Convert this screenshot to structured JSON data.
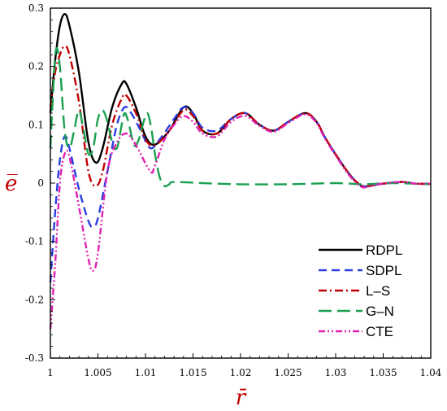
{
  "chart_data": {
    "type": "line",
    "xlabel": "r̄",
    "ylabel": "e̅",
    "xlim": [
      1.0,
      1.04
    ],
    "ylim": [
      -0.3,
      0.3
    ],
    "x_ticks": [
      1.0,
      1.005,
      1.01,
      1.015,
      1.02,
      1.025,
      1.03,
      1.035,
      1.04
    ],
    "x_tick_labels": [
      "1",
      "1.005",
      "1.01",
      "1.015",
      "1.02",
      "1.025",
      "1.03",
      "1.035",
      "1.04"
    ],
    "y_ticks": [
      -0.3,
      -0.2,
      -0.1,
      0.0,
      0.1,
      0.2,
      0.3
    ],
    "y_tick_labels": [
      "-0.3",
      "-0.2",
      "-0.1",
      "0",
      "0.1",
      "0.2",
      "0.3"
    ],
    "legend_position": "bottom-right",
    "grid": false,
    "series": [
      {
        "name": "RDPL",
        "color": "#000000",
        "dash": "solid",
        "points": [
          [
            1.0,
            0.12
          ],
          [
            1.0005,
            0.21
          ],
          [
            1.001,
            0.27
          ],
          [
            1.0015,
            0.29
          ],
          [
            1.002,
            0.27
          ],
          [
            1.003,
            0.19
          ],
          [
            1.004,
            0.07
          ],
          [
            1.0048,
            0.035
          ],
          [
            1.0055,
            0.06
          ],
          [
            1.0065,
            0.13
          ],
          [
            1.0075,
            0.17
          ],
          [
            1.008,
            0.17
          ],
          [
            1.009,
            0.13
          ],
          [
            1.01,
            0.08
          ],
          [
            1.011,
            0.066
          ],
          [
            1.0125,
            0.09
          ],
          [
            1.014,
            0.13
          ],
          [
            1.015,
            0.12
          ],
          [
            1.016,
            0.09
          ],
          [
            1.0175,
            0.085
          ],
          [
            1.019,
            0.11
          ],
          [
            1.0205,
            0.12
          ],
          [
            1.022,
            0.1
          ],
          [
            1.0235,
            0.09
          ],
          [
            1.025,
            0.105
          ],
          [
            1.0268,
            0.12
          ],
          [
            1.028,
            0.105
          ],
          [
            1.029,
            0.075
          ],
          [
            1.031,
            0.025
          ],
          [
            1.032,
            0.005
          ],
          [
            1.0328,
            -0.005
          ],
          [
            1.0335,
            -0.005
          ],
          [
            1.0345,
            -0.002
          ],
          [
            1.0355,
            0.0
          ],
          [
            1.037,
            0.002
          ],
          [
            1.0385,
            -0.001
          ],
          [
            1.04,
            -0.001
          ]
        ]
      },
      {
        "name": "SDPL",
        "color": "#2a3ee0",
        "dash": "dashed",
        "points": [
          [
            1.0,
            -0.17
          ],
          [
            1.0005,
            -0.05
          ],
          [
            1.001,
            0.04
          ],
          [
            1.0015,
            0.08
          ],
          [
            1.002,
            0.06
          ],
          [
            1.003,
            -0.01
          ],
          [
            1.004,
            -0.065
          ],
          [
            1.0045,
            -0.075
          ],
          [
            1.005,
            -0.06
          ],
          [
            1.006,
            0.02
          ],
          [
            1.007,
            0.1
          ],
          [
            1.0078,
            0.13
          ],
          [
            1.0085,
            0.12
          ],
          [
            1.0095,
            0.09
          ],
          [
            1.0105,
            0.06
          ],
          [
            1.0115,
            0.075
          ],
          [
            1.013,
            0.11
          ],
          [
            1.014,
            0.13
          ],
          [
            1.015,
            0.12
          ],
          [
            1.016,
            0.095
          ],
          [
            1.0175,
            0.09
          ],
          [
            1.019,
            0.11
          ],
          [
            1.0205,
            0.12
          ],
          [
            1.022,
            0.1
          ],
          [
            1.0235,
            0.09
          ],
          [
            1.025,
            0.105
          ],
          [
            1.0268,
            0.12
          ],
          [
            1.028,
            0.105
          ],
          [
            1.029,
            0.075
          ],
          [
            1.031,
            0.025
          ],
          [
            1.032,
            0.005
          ],
          [
            1.0328,
            -0.005
          ],
          [
            1.0335,
            -0.005
          ],
          [
            1.0345,
            -0.002
          ],
          [
            1.0355,
            0.0
          ],
          [
            1.037,
            0.002
          ],
          [
            1.0385,
            -0.001
          ],
          [
            1.04,
            -0.001
          ]
        ]
      },
      {
        "name": "L–S",
        "color": "#c00000",
        "dash": "dashdot",
        "points": [
          [
            1.0,
            0.13
          ],
          [
            1.0005,
            0.19
          ],
          [
            1.001,
            0.22
          ],
          [
            1.0015,
            0.235
          ],
          [
            1.002,
            0.22
          ],
          [
            1.003,
            0.14
          ],
          [
            1.004,
            0.02
          ],
          [
            1.0048,
            -0.005
          ],
          [
            1.0055,
            0.02
          ],
          [
            1.0065,
            0.1
          ],
          [
            1.0075,
            0.145
          ],
          [
            1.008,
            0.15
          ],
          [
            1.009,
            0.12
          ],
          [
            1.01,
            0.075
          ],
          [
            1.011,
            0.065
          ],
          [
            1.0125,
            0.09
          ],
          [
            1.014,
            0.125
          ],
          [
            1.015,
            0.115
          ],
          [
            1.016,
            0.09
          ],
          [
            1.0175,
            0.085
          ],
          [
            1.019,
            0.11
          ],
          [
            1.0205,
            0.12
          ],
          [
            1.022,
            0.1
          ],
          [
            1.0235,
            0.09
          ],
          [
            1.025,
            0.105
          ],
          [
            1.0268,
            0.12
          ],
          [
            1.028,
            0.105
          ],
          [
            1.029,
            0.075
          ],
          [
            1.031,
            0.025
          ],
          [
            1.032,
            0.005
          ],
          [
            1.0328,
            -0.005
          ],
          [
            1.0335,
            -0.005
          ],
          [
            1.0345,
            -0.002
          ],
          [
            1.0355,
            0.0
          ],
          [
            1.037,
            0.002
          ],
          [
            1.0385,
            -0.001
          ],
          [
            1.04,
            -0.001
          ]
        ]
      },
      {
        "name": "G–N",
        "color": "#1aa050",
        "dash": "longdash",
        "points": [
          [
            1.0,
            0.06
          ],
          [
            1.0003,
            0.16
          ],
          [
            1.0006,
            0.23
          ],
          [
            1.001,
            0.2
          ],
          [
            1.0015,
            0.09
          ],
          [
            1.002,
            0.06
          ],
          [
            1.0025,
            0.09
          ],
          [
            1.003,
            0.125
          ],
          [
            1.0035,
            0.09
          ],
          [
            1.004,
            0.05
          ],
          [
            1.0045,
            0.06
          ],
          [
            1.005,
            0.11
          ],
          [
            1.0055,
            0.125
          ],
          [
            1.006,
            0.105
          ],
          [
            1.0065,
            0.07
          ],
          [
            1.007,
            0.06
          ],
          [
            1.0075,
            0.1
          ],
          [
            1.0078,
            0.12
          ],
          [
            1.0082,
            0.105
          ],
          [
            1.0088,
            0.065
          ],
          [
            1.0093,
            0.075
          ],
          [
            1.0098,
            0.105
          ],
          [
            1.0102,
            0.12
          ],
          [
            1.0106,
            0.095
          ],
          [
            1.011,
            0.05
          ],
          [
            1.0115,
            0.01
          ],
          [
            1.012,
            -0.005
          ],
          [
            1.0125,
            -0.002
          ],
          [
            1.013,
            0.002
          ],
          [
            1.016,
            0.0
          ],
          [
            1.02,
            -0.002
          ],
          [
            1.025,
            -0.002
          ],
          [
            1.03,
            0.0
          ],
          [
            1.033,
            -0.002
          ],
          [
            1.036,
            0.0
          ],
          [
            1.04,
            -0.002
          ]
        ]
      },
      {
        "name": "CTE",
        "color": "#e020b0",
        "dash": "dashdotdot",
        "points": [
          [
            1.0,
            -0.25
          ],
          [
            1.0005,
            -0.14
          ],
          [
            1.001,
            0.0
          ],
          [
            1.0015,
            0.05
          ],
          [
            1.002,
            0.045
          ],
          [
            1.003,
            -0.04
          ],
          [
            1.004,
            -0.13
          ],
          [
            1.0045,
            -0.15
          ],
          [
            1.005,
            -0.12
          ],
          [
            1.006,
            0.02
          ],
          [
            1.007,
            0.07
          ],
          [
            1.008,
            0.085
          ],
          [
            1.009,
            0.065
          ],
          [
            1.0105,
            0.02
          ],
          [
            1.011,
            0.03
          ],
          [
            1.012,
            0.075
          ],
          [
            1.013,
            0.1
          ],
          [
            1.014,
            0.115
          ],
          [
            1.015,
            0.105
          ],
          [
            1.016,
            0.085
          ],
          [
            1.0175,
            0.08
          ],
          [
            1.019,
            0.105
          ],
          [
            1.0205,
            0.115
          ],
          [
            1.022,
            0.098
          ],
          [
            1.0235,
            0.088
          ],
          [
            1.025,
            0.103
          ],
          [
            1.0268,
            0.118
          ],
          [
            1.028,
            0.103
          ],
          [
            1.029,
            0.073
          ],
          [
            1.031,
            0.023
          ],
          [
            1.032,
            0.003
          ],
          [
            1.0328,
            -0.007
          ],
          [
            1.0335,
            -0.006
          ],
          [
            1.0345,
            -0.002
          ],
          [
            1.0355,
            0.0
          ],
          [
            1.037,
            0.002
          ],
          [
            1.0385,
            -0.001
          ],
          [
            1.04,
            -0.001
          ]
        ]
      }
    ]
  }
}
